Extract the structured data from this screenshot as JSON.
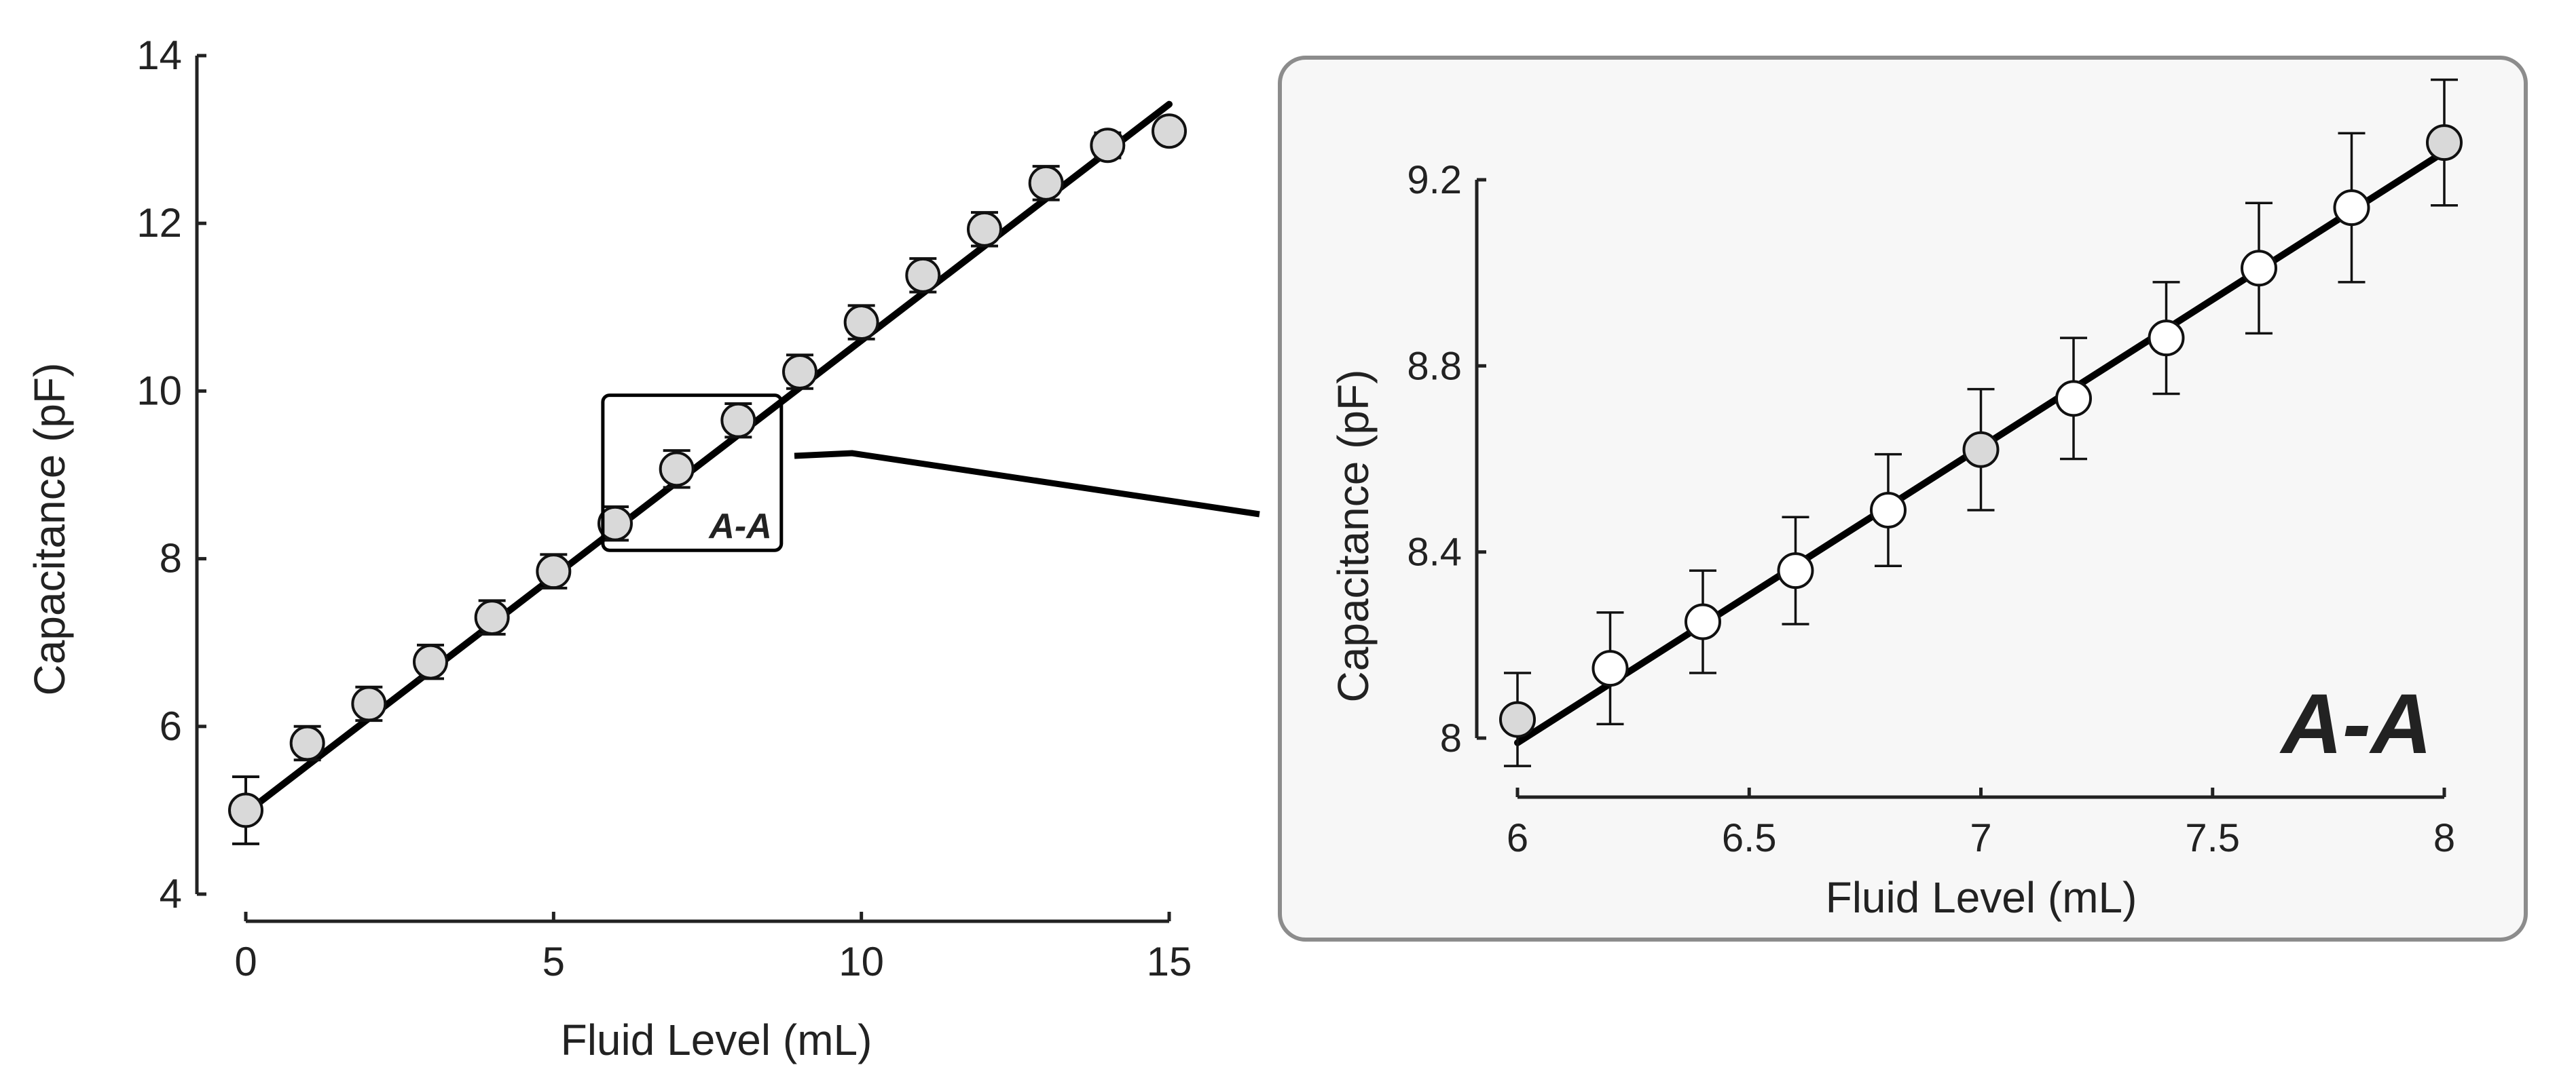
{
  "colors": {
    "line": "#000000",
    "marker_filled": "#d9d9d9",
    "marker_open": "#ffffff",
    "inset_panel_bg": "#f7f7f7",
    "inset_panel_border": "#8c8c8c",
    "axis": "#222222"
  },
  "chart_data": [
    {
      "type": "scatter",
      "title": "",
      "xlabel": "Fluid Level (mL)",
      "ylabel": "Capacitance (pF)",
      "xlim": [
        0,
        15
      ],
      "ylim": [
        4,
        14
      ],
      "xticks": [
        0,
        5,
        10,
        15
      ],
      "yticks": [
        4,
        6,
        8,
        10,
        12,
        14
      ],
      "grid": false,
      "series": [
        {
          "marker": "circle-filled",
          "x": [
            0,
            1,
            2,
            3,
            4,
            5,
            6,
            7,
            8,
            9,
            10,
            11,
            12,
            13,
            14,
            15
          ],
          "y": [
            5.0,
            5.8,
            6.27,
            6.77,
            7.3,
            7.85,
            8.42,
            9.07,
            9.65,
            10.23,
            10.82,
            11.38,
            11.93,
            12.48,
            12.93,
            13.1
          ],
          "err": [
            0.4,
            0.2,
            0.2,
            0.2,
            0.2,
            0.2,
            0.2,
            0.22,
            0.2,
            0.2,
            0.2,
            0.2,
            0.2,
            0.2,
            0.15,
            0.1
          ]
        }
      ],
      "fit_line": {
        "x": [
          0,
          15
        ],
        "y": [
          4.97,
          13.42
        ]
      },
      "zoom_box": {
        "x": [
          5.8,
          8.7
        ],
        "y": [
          8.1,
          9.95
        ],
        "label": "A-A"
      }
    },
    {
      "type": "scatter",
      "title": "",
      "xlabel": "Fluid Level (mL)",
      "ylabel": "Capacitance (pF)",
      "xlim": [
        6,
        8
      ],
      "ylim": [
        8,
        9.2
      ],
      "xticks": [
        6,
        6.5,
        7,
        7.5,
        8
      ],
      "xtick_labels": [
        "6",
        "6.5",
        "7",
        "7.5",
        "8"
      ],
      "yticks": [
        8,
        8.4,
        8.8,
        9.2
      ],
      "ytick_labels": [
        "8",
        "8.4",
        "8.8",
        "9.2"
      ],
      "grid": false,
      "series": [
        {
          "x": [
            6,
            6.2,
            6.4,
            6.6,
            6.8,
            7,
            7.2,
            7.4,
            7.6,
            7.8,
            8
          ],
          "y": [
            8.04,
            8.15,
            8.25,
            8.36,
            8.49,
            8.62,
            8.73,
            8.86,
            9.01,
            9.14,
            9.28
          ],
          "err": [
            0.1,
            0.12,
            0.11,
            0.115,
            0.12,
            0.13,
            0.13,
            0.12,
            0.14,
            0.16,
            0.135
          ],
          "filled": [
            true,
            false,
            false,
            false,
            false,
            true,
            false,
            false,
            false,
            false,
            true
          ]
        }
      ],
      "fit_line": {
        "x": [
          6,
          8
        ],
        "y": [
          7.99,
          9.26
        ]
      },
      "annotation": "A-A"
    }
  ]
}
